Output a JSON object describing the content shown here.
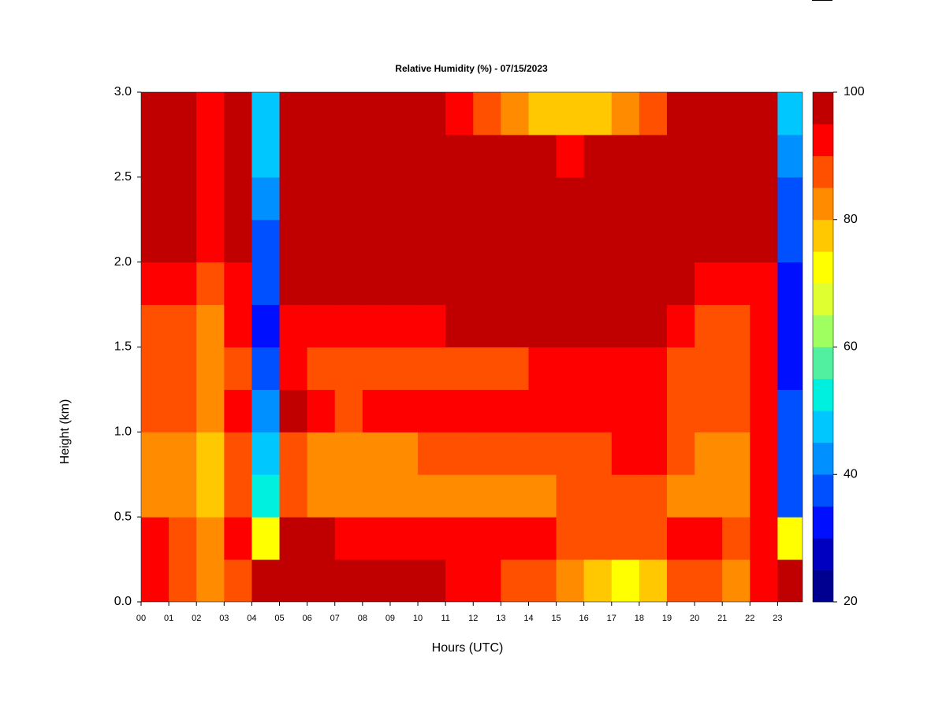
{
  "chart_data": {
    "type": "heatmap",
    "title": "Relative Humidity (%) - 07/15/2023",
    "x_label": "Hours (UTC)",
    "y_label": "Height (km)",
    "xlim": [
      0,
      23.9
    ],
    "ylim": [
      0,
      3
    ],
    "xticks": [
      {
        "value": 0,
        "label": "00"
      },
      {
        "value": 1,
        "label": "01"
      },
      {
        "value": 2,
        "label": "02"
      },
      {
        "value": 3,
        "label": "03"
      },
      {
        "value": 4,
        "label": "04"
      },
      {
        "value": 5,
        "label": "05"
      },
      {
        "value": 6,
        "label": "06"
      },
      {
        "value": 7,
        "label": "07"
      },
      {
        "value": 8,
        "label": "08"
      },
      {
        "value": 9,
        "label": "09"
      },
      {
        "value": 10,
        "label": "10"
      },
      {
        "value": 11,
        "label": "11"
      },
      {
        "value": 12,
        "label": "12"
      },
      {
        "value": 13,
        "label": "13"
      },
      {
        "value": 14,
        "label": "14"
      },
      {
        "value": 15,
        "label": "15"
      },
      {
        "value": 16,
        "label": "16"
      },
      {
        "value": 17,
        "label": "17"
      },
      {
        "value": 18,
        "label": "18"
      },
      {
        "value": 19,
        "label": "19"
      },
      {
        "value": 20,
        "label": "20"
      },
      {
        "value": 21,
        "label": "21"
      },
      {
        "value": 22,
        "label": "22"
      },
      {
        "value": 23,
        "label": "23"
      }
    ],
    "yticks": [
      {
        "value": 0,
        "label": "0.0"
      },
      0.5,
      {
        "value": 1,
        "label": "1.0"
      },
      1.5,
      {
        "value": 2,
        "label": "2.0"
      },
      2.5,
      {
        "value": 3,
        "label": "3.0"
      }
    ],
    "x": [
      0,
      1,
      2,
      3,
      4,
      5,
      6,
      7,
      8,
      9,
      10,
      11,
      12,
      13,
      14,
      15,
      16,
      17,
      18,
      19,
      20,
      21,
      22,
      23
    ],
    "y": [
      0,
      0.25,
      0.5,
      0.75,
      1,
      1.25,
      1.5,
      1.75,
      2,
      2.25,
      2.5,
      2.75
    ],
    "z": [
      [
        92,
        85,
        80,
        88,
        97,
        98,
        97,
        96,
        97,
        97,
        96,
        93,
        90,
        88,
        85,
        82,
        75,
        70,
        75,
        85,
        85,
        80,
        92,
        95
      ],
      [
        92,
        86,
        82,
        90,
        70,
        98,
        95,
        93,
        94,
        94,
        93,
        92,
        92,
        91,
        90,
        88,
        85,
        85,
        88,
        90,
        90,
        88,
        92,
        70
      ],
      [
        80,
        80,
        75,
        88,
        50,
        85,
        80,
        80,
        82,
        82,
        82,
        83,
        82,
        82,
        83,
        85,
        85,
        85,
        85,
        82,
        80,
        80,
        90,
        35
      ],
      [
        82,
        83,
        78,
        88,
        45,
        88,
        82,
        82,
        84,
        84,
        85,
        86,
        86,
        86,
        88,
        88,
        88,
        90,
        90,
        85,
        82,
        83,
        90,
        35
      ],
      [
        88,
        88,
        80,
        90,
        42,
        95,
        90,
        88,
        90,
        90,
        90,
        92,
        92,
        92,
        93,
        93,
        93,
        93,
        92,
        88,
        88,
        88,
        92,
        35
      ],
      [
        86,
        86,
        80,
        88,
        35,
        90,
        88,
        88,
        88,
        88,
        88,
        88,
        88,
        88,
        90,
        90,
        90,
        92,
        90,
        88,
        86,
        86,
        92,
        32
      ],
      [
        88,
        88,
        82,
        90,
        33,
        92,
        92,
        90,
        90,
        92,
        93,
        96,
        97,
        97,
        97,
        97,
        97,
        97,
        97,
        92,
        88,
        88,
        92,
        30
      ],
      [
        90,
        90,
        85,
        92,
        35,
        97,
        97,
        97,
        97,
        97,
        97,
        98,
        98,
        98,
        98,
        98,
        98,
        98,
        98,
        96,
        90,
        90,
        92,
        30
      ],
      [
        98,
        97,
        90,
        95,
        38,
        98,
        98,
        98,
        98,
        98,
        98,
        98,
        98,
        98,
        98,
        98,
        98,
        98,
        98,
        98,
        97,
        96,
        95,
        35
      ],
      [
        98,
        97,
        90,
        95,
        40,
        98,
        98,
        98,
        98,
        98,
        98,
        98,
        98,
        98,
        98,
        98,
        98,
        98,
        98,
        98,
        98,
        97,
        95,
        38
      ],
      [
        98,
        97,
        90,
        95,
        45,
        98,
        98,
        98,
        98,
        98,
        98,
        98,
        98,
        96,
        95,
        93,
        95,
        96,
        96,
        98,
        98,
        97,
        95,
        40
      ],
      [
        98,
        97,
        90,
        95,
        45,
        98,
        98,
        98,
        98,
        98,
        98,
        93,
        88,
        82,
        78,
        75,
        78,
        82,
        88,
        98,
        98,
        97,
        95,
        45
      ]
    ],
    "levels": [
      20,
      25,
      30,
      35,
      40,
      45,
      50,
      55,
      60,
      65,
      70,
      75,
      80,
      85,
      90,
      95,
      100
    ],
    "colors": [
      "#000090",
      "#0000c0",
      "#0010ff",
      "#0050ff",
      "#0090ff",
      "#00c8ff",
      "#00f0e0",
      "#50f0a0",
      "#a0ff60",
      "#e0ff30",
      "#ffff00",
      "#ffc800",
      "#ff8c00",
      "#ff5000",
      "#ff0000",
      "#c00000",
      "#800000"
    ],
    "cticks": [
      20,
      40,
      60,
      80,
      100
    ]
  }
}
